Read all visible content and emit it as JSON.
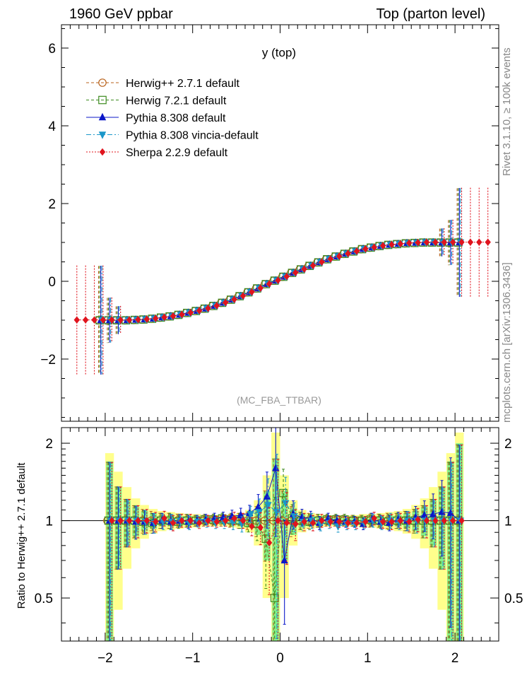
{
  "header": {
    "left": "1960 GeV ppbar",
    "right": "Top (parton level)"
  },
  "side_labels": {
    "rivet": "Rivet 3.1.10, ≥ 100k events",
    "mcplots": "mcplots.cern.ch [arXiv:1306.3436]"
  },
  "chart_data": [
    {
      "type": "line",
      "title": "y (top)",
      "annotation": "(MC_FBA_TTBAR)",
      "xlim": [
        -2.5,
        2.5
      ],
      "ylim": [
        -3.6,
        6.6
      ],
      "yticks": [
        -2,
        0,
        2,
        4,
        6
      ],
      "xticks": [
        -2,
        -1,
        0,
        1,
        2
      ],
      "legend_position": "top-left",
      "x": [
        -2.35,
        -2.25,
        -2.15,
        -2.05,
        -1.95,
        -1.85,
        -1.75,
        -1.65,
        -1.55,
        -1.45,
        -1.35,
        -1.25,
        -1.15,
        -1.05,
        -0.95,
        -0.85,
        -0.75,
        -0.65,
        -0.55,
        -0.45,
        -0.35,
        -0.25,
        -0.15,
        -0.05,
        0.05,
        0.15,
        0.25,
        0.35,
        0.45,
        0.55,
        0.65,
        0.75,
        0.85,
        0.95,
        1.05,
        1.15,
        1.25,
        1.35,
        1.45,
        1.55,
        1.65,
        1.75,
        1.85,
        1.95,
        2.05,
        2.15,
        2.25,
        2.35
      ],
      "y": [
        -1.0,
        -1.0,
        -1.0,
        -1.0,
        -1.0,
        -1.0,
        -1.0,
        -0.99,
        -0.98,
        -0.96,
        -0.93,
        -0.9,
        -0.86,
        -0.81,
        -0.76,
        -0.7,
        -0.63,
        -0.55,
        -0.47,
        -0.38,
        -0.28,
        -0.18,
        -0.07,
        0.02,
        0.12,
        0.22,
        0.31,
        0.4,
        0.49,
        0.57,
        0.64,
        0.71,
        0.77,
        0.83,
        0.87,
        0.91,
        0.94,
        0.96,
        0.98,
        0.99,
        1.0,
        1.0,
        1.0,
        1.0,
        1.0,
        1.0,
        1.0,
        1.0
      ],
      "series": [
        {
          "name": "Herwig++ 2.7.1 default",
          "color": "#b8621b",
          "marker": "open-circle",
          "line": "dashed",
          "xrange": [
            -2.05,
            2.05
          ]
        },
        {
          "name": "Herwig 7.2.1 default",
          "color": "#3c8a1e",
          "marker": "open-square",
          "line": "dashed",
          "xrange": [
            -2.05,
            2.05
          ]
        },
        {
          "name": "Pythia 8.308 default",
          "color": "#0b17c8",
          "marker": "triangle-up",
          "line": "solid",
          "xrange": [
            -2.05,
            2.05
          ]
        },
        {
          "name": "Pythia 8.308 vincia-default",
          "color": "#1a97c9",
          "marker": "triangle-down",
          "line": "dashdot",
          "xrange": [
            -2.05,
            2.05
          ]
        },
        {
          "name": "Sherpa 2.2.9 default",
          "color": "#e0141e",
          "marker": "diamond",
          "line": "dotted",
          "xrange": [
            -2.35,
            2.35
          ]
        }
      ]
    },
    {
      "type": "line",
      "ylabel": "Ratio to Herwig++ 2.7.1 default",
      "xlim": [
        -2.5,
        2.5
      ],
      "ylim": [
        0.34,
        2.3
      ],
      "yticks": [
        0.5,
        1,
        2
      ],
      "yticklabels": [
        "0.5",
        "1",
        "2"
      ],
      "xticks": [
        -2,
        -1,
        0,
        1,
        2
      ],
      "xticklabels": [
        "−2",
        "−1",
        "0",
        "1",
        "2"
      ],
      "reference_line": 1,
      "x": [
        -1.95,
        -1.85,
        -1.75,
        -1.65,
        -1.55,
        -1.45,
        -1.35,
        -1.25,
        -1.15,
        -1.05,
        -0.95,
        -0.85,
        -0.75,
        -0.65,
        -0.55,
        -0.45,
        -0.35,
        -0.25,
        -0.15,
        -0.05,
        0.05,
        0.15,
        0.25,
        0.35,
        0.45,
        0.55,
        0.65,
        0.75,
        0.85,
        0.95,
        1.05,
        1.15,
        1.25,
        1.35,
        1.45,
        1.55,
        1.65,
        1.75,
        1.85,
        1.95,
        2.05
      ],
      "band_outer": [
        0.83,
        0.55,
        0.35,
        0.22,
        0.15,
        0.11,
        0.09,
        0.08,
        0.07,
        0.06,
        0.06,
        0.05,
        0.05,
        0.05,
        0.06,
        0.07,
        0.1,
        0.2,
        0.5,
        1.2,
        0.5,
        0.2,
        0.1,
        0.07,
        0.06,
        0.05,
        0.05,
        0.05,
        0.05,
        0.06,
        0.06,
        0.07,
        0.08,
        0.09,
        0.11,
        0.15,
        0.22,
        0.35,
        0.55,
        0.83,
        1.2
      ],
      "band_inner": [
        0.7,
        0.35,
        0.2,
        0.13,
        0.09,
        0.07,
        0.05,
        0.05,
        0.04,
        0.04,
        0.03,
        0.03,
        0.03,
        0.03,
        0.04,
        0.05,
        0.06,
        0.12,
        0.3,
        0.75,
        0.3,
        0.12,
        0.06,
        0.05,
        0.04,
        0.03,
        0.03,
        0.03,
        0.03,
        0.03,
        0.04,
        0.04,
        0.05,
        0.05,
        0.07,
        0.09,
        0.13,
        0.2,
        0.35,
        0.7,
        1.0
      ],
      "series": [
        {
          "name": "Herwig++ 2.7.1 default",
          "values": [
            1,
            1,
            1,
            1,
            1,
            1,
            1,
            1,
            1,
            1,
            1,
            1,
            1,
            1,
            1,
            1,
            1,
            1,
            1,
            1,
            1,
            1,
            1,
            1,
            1,
            1,
            1,
            1,
            1,
            1,
            1,
            1,
            1,
            1,
            1,
            1,
            1,
            1,
            1,
            1,
            1
          ]
        },
        {
          "name": "Herwig 7.2.1 default",
          "values": [
            1.0,
            1.0,
            1.0,
            1.0,
            0.99,
            0.98,
            1.0,
            1.0,
            0.99,
            1.0,
            1.0,
            1.01,
            1.01,
            1.02,
            1.01,
            1.0,
            0.98,
            0.97,
            0.85,
            0.5,
            1.28,
            1.02,
            1.0,
            0.99,
            1.0,
            1.01,
            1.01,
            1.01,
            1.0,
            1.0,
            1.01,
            1.0,
            0.99,
            1.0,
            1.0,
            1.0,
            1.0,
            1.0,
            1.0,
            1.0,
            1.0
          ]
        },
        {
          "name": "Pythia 8.308 default",
          "values": [
            1.0,
            1.0,
            1.0,
            0.99,
            0.99,
            0.98,
            1.0,
            0.99,
            1.0,
            0.99,
            1.0,
            1.01,
            1.02,
            1.03,
            1.04,
            1.05,
            1.07,
            1.13,
            1.24,
            1.6,
            0.7,
            1.06,
            1.03,
            1.02,
            0.98,
            1.02,
            1.0,
            0.99,
            0.99,
            0.97,
            1.01,
            0.99,
            0.98,
            1.01,
            1.0,
            1.03,
            1.05,
            1.06,
            1.08,
            1.07,
            1.0
          ]
        },
        {
          "name": "Pythia 8.308 vincia-default",
          "values": [
            1.0,
            1.0,
            1.0,
            1.0,
            0.99,
            0.98,
            0.99,
            0.99,
            1.0,
            0.98,
            0.99,
            0.99,
            0.98,
            0.98,
            0.98,
            0.97,
            1.06,
            1.08,
            1.15,
            1.08,
            1.17,
            1.04,
            0.99,
            1.0,
            0.97,
            0.98,
            0.95,
            0.97,
            0.97,
            0.98,
            1.0,
            0.98,
            1.0,
            0.99,
            1.0,
            1.0,
            1.0,
            1.0,
            1.0,
            1.0,
            1.0
          ]
        },
        {
          "name": "Sherpa 2.2.9 default",
          "values": [
            1.0,
            1.0,
            1.0,
            1.0,
            1.0,
            0.99,
            1.02,
            0.98,
            1.0,
            1.0,
            0.98,
            1.0,
            0.99,
            1.0,
            1.02,
            1.0,
            0.95,
            0.94,
            0.82,
            1.0,
            0.98,
            0.97,
            0.99,
            0.98,
            1.0,
            0.99,
            0.99,
            0.98,
            0.98,
            0.99,
            1.02,
            0.99,
            0.99,
            1.0,
            0.99,
            1.01,
            1.0,
            1.0,
            1.0,
            1.0,
            1.0
          ]
        }
      ]
    }
  ]
}
